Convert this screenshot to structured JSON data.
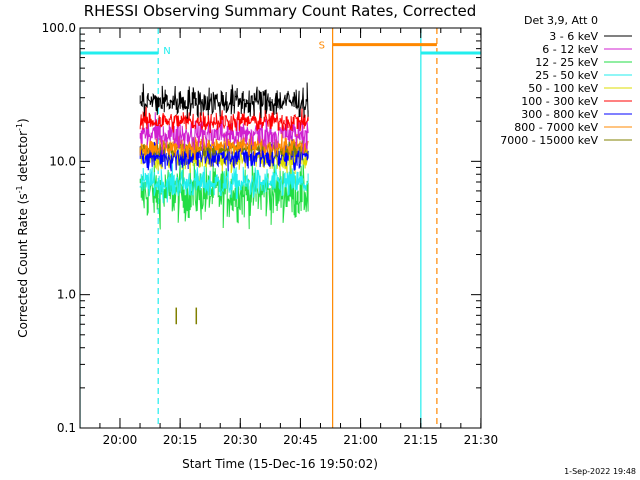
{
  "chart_data": {
    "type": "line",
    "title": "RHESSI Observing Summary Count Rates, Corrected",
    "ylabel_main": "Corrected Count Rate (s",
    "ylabel_sup1": "-1",
    "ylabel_mid": " detector",
    "ylabel_sup2": "-1",
    "ylabel_end": ")",
    "xlabel": "Start Time (15-Dec-16 19:50:02)",
    "footer": "1-Sep-2022 19:48",
    "y_scale": "log",
    "ylim": [
      0.1,
      100
    ],
    "y_ticks": [
      {
        "value": 0.1,
        "label": "0.1"
      },
      {
        "value": 1,
        "label": "1.0"
      },
      {
        "value": 10,
        "label": "10.0"
      },
      {
        "value": 100,
        "label": "100.0"
      }
    ],
    "x_unit": "minutes after 19:50:02",
    "xlim": [
      0,
      100
    ],
    "x_ticks": [
      {
        "value": 9.97,
        "label": "20:00"
      },
      {
        "value": 24.97,
        "label": "20:15"
      },
      {
        "value": 39.97,
        "label": "20:30"
      },
      {
        "value": 54.97,
        "label": "20:45"
      },
      {
        "value": 69.97,
        "label": "21:00"
      },
      {
        "value": 84.97,
        "label": "21:15"
      },
      {
        "value": 99.97,
        "label": "21:30"
      }
    ],
    "legend": {
      "header": "Det 3,9, Att 0",
      "placement": "outside-right"
    },
    "series": [
      {
        "name": "3 - 6 keV",
        "color": "#000000",
        "x_range": [
          15,
          57
        ],
        "level": 28,
        "spread": 0.1
      },
      {
        "name": "6 - 12 keV",
        "color": "#d020d0",
        "x_range": [
          15,
          57
        ],
        "level": 16,
        "spread": 0.1
      },
      {
        "name": "12 - 25 keV",
        "color": "#22dd44",
        "x_range": [
          15,
          57
        ],
        "level": 5.8,
        "spread": 0.18
      },
      {
        "name": "25 - 50 keV",
        "color": "#22eeee",
        "x_range": [
          15,
          57
        ],
        "level": 6.8,
        "spread": 0.1
      },
      {
        "name": "50 - 100 keV",
        "color": "#dddd00",
        "x_range": [
          15,
          57
        ],
        "level": 10.5,
        "spread": 0.08
      },
      {
        "name": "100 - 300 keV",
        "color": "#ff0000",
        "x_range": [
          15,
          57
        ],
        "level": 20,
        "spread": 0.07
      },
      {
        "name": "300 - 800 keV",
        "color": "#0000ff",
        "x_range": [
          15,
          57
        ],
        "level": 11,
        "spread": 0.1
      },
      {
        "name": "800 - 7000 keV",
        "color": "#ff8800",
        "x_range": [
          15,
          57
        ],
        "level": 13,
        "spread": 0.07
      },
      {
        "name": "7000 - 15000 keV",
        "color": "#808000",
        "x_range": [
          15,
          57
        ],
        "level": 12.5,
        "spread": 0.05
      }
    ],
    "spikes_7000_15000": [
      {
        "x": 24,
        "low": 0.6,
        "high": 0.8
      },
      {
        "x": 29,
        "low": 0.6,
        "high": 0.8
      }
    ],
    "events": {
      "night_bars": [
        {
          "x_start": 0,
          "x_end": 19.5,
          "y": 65,
          "color": "#22eeee"
        },
        {
          "x_start": 85,
          "x_end": 104,
          "y": 65,
          "color": "#22eeee"
        }
      ],
      "night_label": "N",
      "saa_bar": {
        "x_start": 63,
        "x_end": 89,
        "y": 75,
        "color": "#ff8800"
      },
      "saa_label": "S",
      "vlines": [
        {
          "x": 0,
          "color": "#22eeee",
          "dash": false
        },
        {
          "x": 19.5,
          "color": "#22eeee",
          "dash": true
        },
        {
          "x": 63,
          "color": "#ff8800",
          "dash": false
        },
        {
          "x": 85,
          "color": "#22eeee",
          "dash": false
        },
        {
          "x": 89,
          "color": "#ff8800",
          "dash": true
        },
        {
          "x": 104,
          "color": "#22eeee",
          "dash": true
        }
      ]
    }
  }
}
